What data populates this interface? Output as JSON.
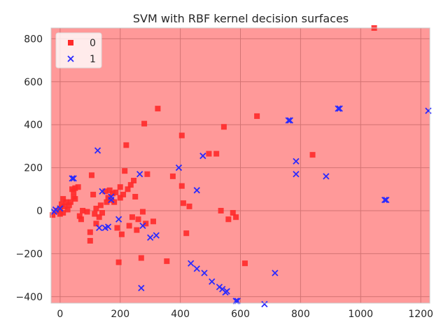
{
  "chart_data": {
    "type": "scatter",
    "title": "SVM with RBF kernel decision surfaces",
    "xlabel": "",
    "ylabel": "",
    "xlim": [
      -30,
      1230
    ],
    "ylim": [
      -430,
      850
    ],
    "xticks": [
      "0",
      "200",
      "400",
      "600",
      "800",
      "1000",
      "1200"
    ],
    "xtick_values": [
      0,
      200,
      400,
      600,
      800,
      1000,
      1200
    ],
    "yticks": [
      "800",
      "600",
      "400",
      "200",
      "0",
      "−200",
      "−400"
    ],
    "ytick_values": [
      800,
      600,
      400,
      200,
      0,
      -200,
      -400
    ],
    "grid": true,
    "background_region_color": "#ff9999",
    "legend_position": "top-left",
    "series": [
      {
        "name": "0",
        "marker": "square",
        "color": "#ff2a2a",
        "points": [
          [
            -25,
            -20
          ],
          [
            -10,
            0
          ],
          [
            0,
            -15
          ],
          [
            0,
            10
          ],
          [
            5,
            30
          ],
          [
            10,
            -10
          ],
          [
            10,
            55
          ],
          [
            15,
            20
          ],
          [
            20,
            40
          ],
          [
            25,
            5
          ],
          [
            30,
            25
          ],
          [
            35,
            40
          ],
          [
            40,
            100
          ],
          [
            45,
            65
          ],
          [
            45,
            90
          ],
          [
            50,
            55
          ],
          [
            50,
            105
          ],
          [
            60,
            110
          ],
          [
            65,
            -25
          ],
          [
            70,
            -40
          ],
          [
            75,
            0
          ],
          [
            90,
            -5
          ],
          [
            100,
            -100
          ],
          [
            100,
            -140
          ],
          [
            105,
            165
          ],
          [
            110,
            75
          ],
          [
            115,
            -15
          ],
          [
            120,
            10
          ],
          [
            120,
            -60
          ],
          [
            130,
            -30
          ],
          [
            135,
            25
          ],
          [
            140,
            -10
          ],
          [
            150,
            90
          ],
          [
            155,
            40
          ],
          [
            160,
            60
          ],
          [
            165,
            95
          ],
          [
            170,
            50
          ],
          [
            175,
            80
          ],
          [
            180,
            40
          ],
          [
            185,
            85
          ],
          [
            190,
            -80
          ],
          [
            195,
            -240
          ],
          [
            200,
            60
          ],
          [
            200,
            110
          ],
          [
            205,
            -110
          ],
          [
            210,
            75
          ],
          [
            215,
            185
          ],
          [
            220,
            305
          ],
          [
            225,
            100
          ],
          [
            230,
            -70
          ],
          [
            235,
            120
          ],
          [
            240,
            -30
          ],
          [
            245,
            140
          ],
          [
            250,
            65
          ],
          [
            255,
            -90
          ],
          [
            260,
            -40
          ],
          [
            270,
            -220
          ],
          [
            275,
            -5
          ],
          [
            280,
            405
          ],
          [
            285,
            -60
          ],
          [
            290,
            170
          ],
          [
            310,
            -50
          ],
          [
            325,
            475
          ],
          [
            355,
            -235
          ],
          [
            375,
            160
          ],
          [
            405,
            350
          ],
          [
            405,
            115
          ],
          [
            410,
            35
          ],
          [
            420,
            -105
          ],
          [
            430,
            20
          ],
          [
            495,
            265
          ],
          [
            520,
            265
          ],
          [
            535,
            0
          ],
          [
            545,
            390
          ],
          [
            560,
            -40
          ],
          [
            575,
            -10
          ],
          [
            585,
            -30
          ],
          [
            615,
            -245
          ],
          [
            655,
            440
          ],
          [
            840,
            260
          ],
          [
            1045,
            850
          ]
        ]
      },
      {
        "name": "1",
        "marker": "x",
        "color": "#2a2aff",
        "points": [
          [
            -20,
            -5
          ],
          [
            -15,
            5
          ],
          [
            0,
            10
          ],
          [
            40,
            150
          ],
          [
            45,
            150
          ],
          [
            125,
            280
          ],
          [
            130,
            -80
          ],
          [
            140,
            90
          ],
          [
            150,
            -80
          ],
          [
            160,
            -75
          ],
          [
            170,
            50
          ],
          [
            170,
            65
          ],
          [
            195,
            -40
          ],
          [
            265,
            170
          ],
          [
            270,
            -360
          ],
          [
            275,
            -70
          ],
          [
            300,
            -125
          ],
          [
            320,
            -115
          ],
          [
            395,
            200
          ],
          [
            435,
            -245
          ],
          [
            455,
            -270
          ],
          [
            455,
            95
          ],
          [
            475,
            255
          ],
          [
            480,
            -290
          ],
          [
            505,
            -330
          ],
          [
            530,
            -355
          ],
          [
            540,
            -365
          ],
          [
            550,
            -380
          ],
          [
            555,
            -375
          ],
          [
            585,
            -420
          ],
          [
            590,
            -420
          ],
          [
            680,
            -435
          ],
          [
            715,
            -290
          ],
          [
            760,
            420
          ],
          [
            765,
            420
          ],
          [
            785,
            230
          ],
          [
            785,
            170
          ],
          [
            885,
            160
          ],
          [
            925,
            475
          ],
          [
            930,
            475
          ],
          [
            1080,
            50
          ],
          [
            1085,
            50
          ],
          [
            1225,
            465
          ]
        ]
      }
    ]
  }
}
